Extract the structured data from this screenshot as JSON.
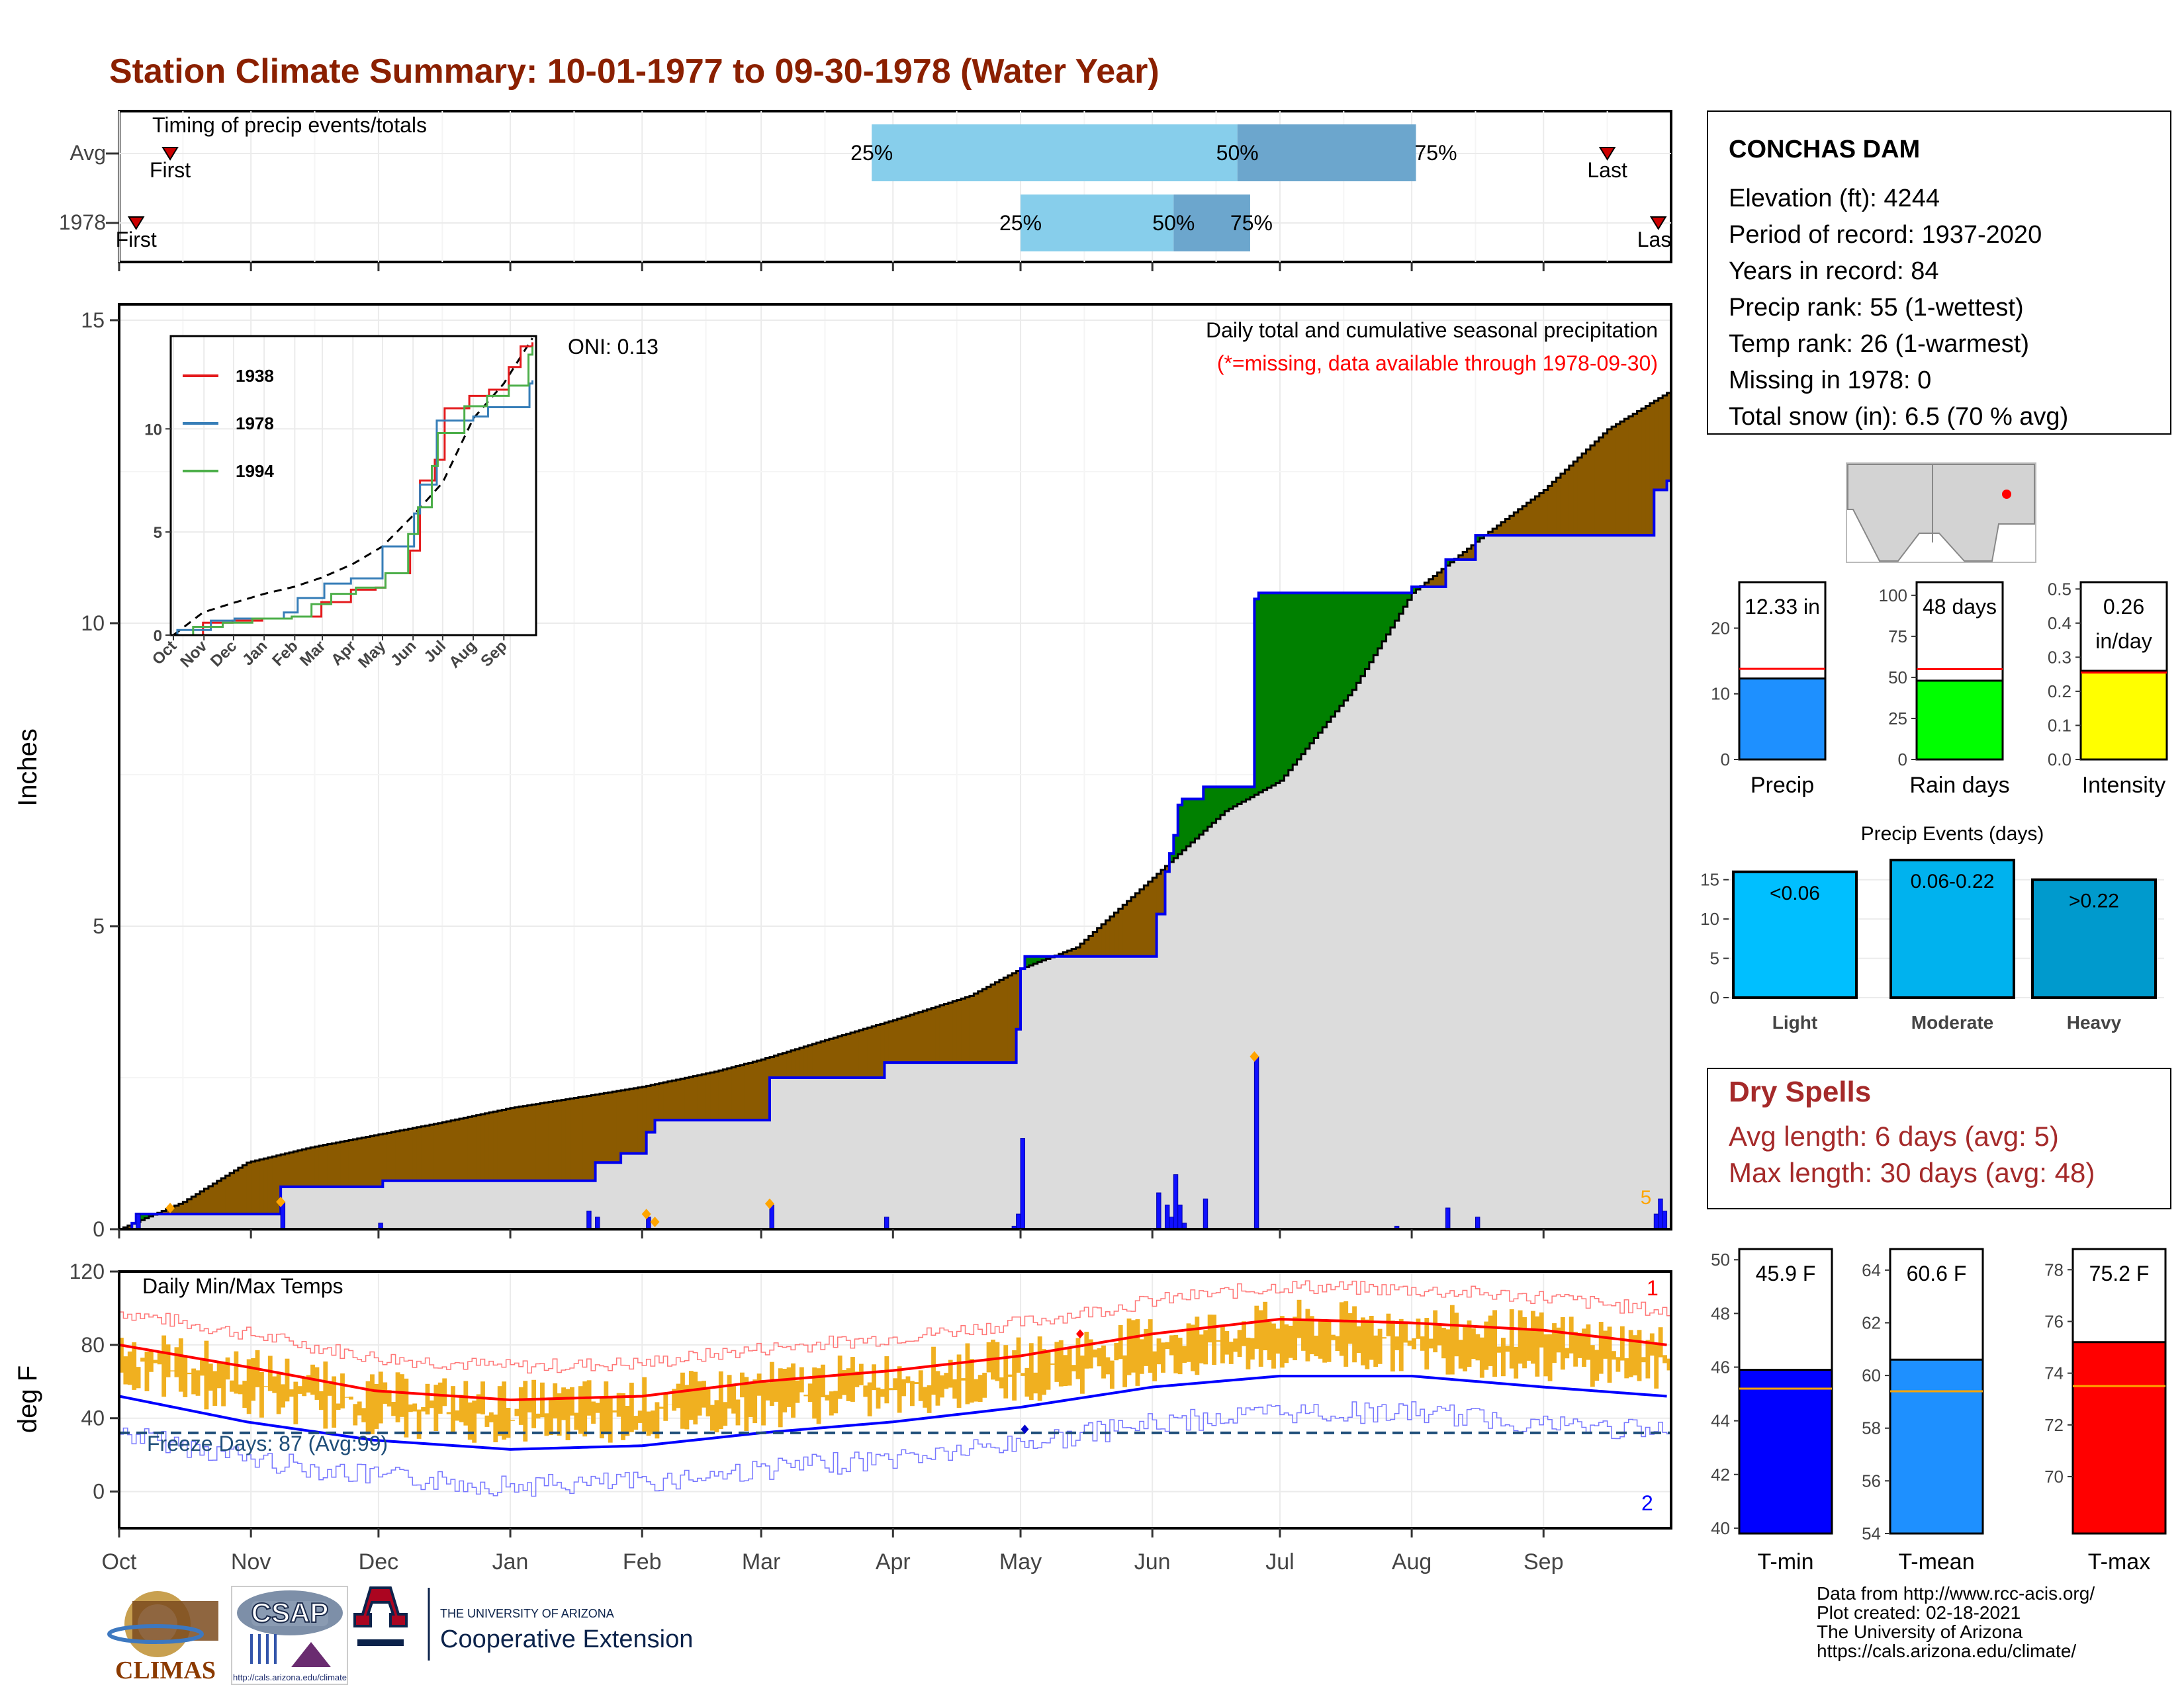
{
  "title": "Station Climate Summary: 10-01-1977 to 09-30-1978 (Water Year)",
  "colors": {
    "title": "#8B2000",
    "deficit": "#8B5A00",
    "surplus": "#008000",
    "avg_fill": "#DCDCDC",
    "obs_line": "#0000EE",
    "q1_bar": "#87CEEB",
    "q2_bar": "#6CA6CD",
    "temp_bar": "#F0B020",
    "precip_bar": "#1E90FF",
    "rain_bar": "#00FF00",
    "intensity_bar": "#FFFF00",
    "light_bar": "#00BFFF",
    "moderate_bar": "#00B2EE",
    "heavy_bar": "#009ACD",
    "tmin_bar": "#0000FF",
    "tmean_bar": "#1E90FF",
    "tmax_bar": "#FF0000",
    "dry_spell_text": "#A52A2A"
  },
  "months": [
    "Oct",
    "Nov",
    "Dec",
    "Jan",
    "Feb",
    "Mar",
    "Apr",
    "May",
    "Jun",
    "Jul",
    "Aug",
    "Sep"
  ],
  "month_start_days": [
    0,
    31,
    61,
    92,
    123,
    151,
    182,
    212,
    243,
    273,
    304,
    335
  ],
  "timing": {
    "title": "Timing of precip events/totals",
    "row_labels": [
      "Avg",
      "1978"
    ],
    "avg": {
      "first_day": 12,
      "q25_day": 177,
      "q50_day": 263,
      "q75_day": 305,
      "last_day": 350
    },
    "year": {
      "first_day": 4,
      "q25_day": 212,
      "q50_day": 248,
      "q75_day": 266,
      "last_day": 362
    },
    "labels": {
      "first": "First",
      "last": "Last",
      "last_cut": "Las",
      "q25": "25%",
      "q50": "50%",
      "q75": "75%"
    }
  },
  "precip": {
    "ylabel": "Inches",
    "yticks": [
      0,
      5,
      10,
      15
    ],
    "ylim": [
      0,
      15
    ],
    "subtitle1": "Daily total and cumulative seasonal precipitation",
    "subtitle2": "(*=missing, data available through 1978-09-30)",
    "oni": "ONI: 0.13",
    "count_label": "5"
  },
  "chart_data": {
    "type": "area",
    "title": "Daily total and cumulative seasonal precipitation",
    "ylabel": "Inches",
    "ylim": [
      0,
      15
    ],
    "avg_cumulative": {
      "x_day": [
        0,
        15,
        30,
        45,
        60,
        75,
        92,
        110,
        123,
        140,
        151,
        165,
        182,
        200,
        212,
        225,
        243,
        260,
        273,
        290,
        304,
        320,
        335,
        350,
        364
      ],
      "y": [
        0,
        0.45,
        1.1,
        1.35,
        1.55,
        1.75,
        2.0,
        2.2,
        2.35,
        2.6,
        2.8,
        3.1,
        3.45,
        3.85,
        4.3,
        4.65,
        5.8,
        6.9,
        7.4,
        8.9,
        10.5,
        11.4,
        12.2,
        13.2,
        13.8
      ]
    },
    "year_cumulative": {
      "x_day": [
        0,
        3,
        4,
        37,
        38,
        61,
        62,
        110,
        112,
        118,
        124,
        126,
        140,
        151,
        153,
        178,
        180,
        210,
        211,
        212,
        213,
        214,
        240,
        244,
        246,
        247,
        248,
        249,
        250,
        255,
        266,
        267,
        268,
        300,
        304,
        310,
        312,
        318,
        319,
        360,
        361,
        364
      ],
      "y": [
        0,
        0.1,
        0.25,
        0.25,
        0.7,
        0.7,
        0.8,
        0.8,
        1.1,
        1.25,
        1.6,
        1.8,
        1.8,
        1.8,
        2.5,
        2.5,
        2.75,
        2.75,
        3.3,
        4.3,
        4.5,
        4.5,
        4.5,
        5.2,
        5.9,
        6.2,
        6.5,
        7.0,
        7.1,
        7.3,
        7.3,
        10.4,
        10.5,
        10.5,
        10.6,
        10.6,
        11.05,
        11.05,
        11.45,
        11.45,
        12.2,
        12.35
      ]
    },
    "daily_precip": {
      "x_day": [
        4,
        38,
        61,
        110,
        112,
        124,
        153,
        180,
        210,
        211,
        212,
        244,
        246,
        247,
        248,
        249,
        250,
        255,
        267,
        300,
        312,
        319,
        361,
        362,
        363
      ],
      "y": [
        0.25,
        0.45,
        0.1,
        0.3,
        0.2,
        0.2,
        0.4,
        0.2,
        0.05,
        0.25,
        1.5,
        0.6,
        0.4,
        0.2,
        0.9,
        0.4,
        0.1,
        0.5,
        2.85,
        0.05,
        0.35,
        0.2,
        0.25,
        0.5,
        0.3
      ]
    }
  },
  "inset": {
    "series_names": [
      "1938",
      "1978",
      "1994"
    ],
    "series_colors": [
      "#E41A1C",
      "#377EB8",
      "#4DAF4A"
    ],
    "yticks": [
      0,
      5,
      10
    ],
    "ylim": [
      0,
      14.5
    ],
    "xticks": [
      "Oct",
      "Nov",
      "Dec",
      "Jan",
      "Feb",
      "Mar",
      "Apr",
      "May",
      "Jun",
      "Jul",
      "Aug",
      "Sep"
    ],
    "series": [
      {
        "name": "1938",
        "x_day": [
          0,
          30,
          60,
          90,
          120,
          150,
          180,
          205,
          215,
          240,
          250,
          265,
          275,
          300,
          320,
          340,
          352,
          364
        ],
        "y": [
          0,
          0.6,
          0.7,
          0.8,
          0.9,
          1.6,
          2.2,
          2.3,
          3.0,
          4.1,
          7.5,
          8.5,
          11.0,
          11.6,
          11.9,
          13.0,
          14.0,
          14.2
        ]
      },
      {
        "name": "1978",
        "x_day": [
          0,
          4,
          38,
          62,
          112,
          126,
          153,
          180,
          212,
          244,
          250,
          267,
          304,
          319,
          361,
          364
        ],
        "y": [
          0,
          0.25,
          0.7,
          0.8,
          1.1,
          1.8,
          2.5,
          2.75,
          4.3,
          5.9,
          7.3,
          10.4,
          10.6,
          11.05,
          12.2,
          12.35
        ]
      },
      {
        "name": "1994",
        "x_day": [
          0,
          20,
          50,
          80,
          120,
          140,
          160,
          185,
          215,
          238,
          248,
          262,
          268,
          295,
          318,
          340,
          360,
          364
        ],
        "y": [
          0,
          0.4,
          0.6,
          0.8,
          0.9,
          1.5,
          2.0,
          2.3,
          3.0,
          4.9,
          6.2,
          8.2,
          9.8,
          11.1,
          11.6,
          12.1,
          13.6,
          14.0
        ]
      }
    ],
    "avg_line": {
      "x_day": [
        0,
        30,
        60,
        92,
        123,
        151,
        182,
        212,
        243,
        273,
        304,
        335,
        364
      ],
      "y": [
        0,
        1.1,
        1.55,
        2.0,
        2.35,
        2.8,
        3.45,
        4.3,
        5.8,
        7.4,
        10.5,
        12.2,
        14.4
      ]
    }
  },
  "temps": {
    "title": "Daily Min/Max Temps",
    "ylabel": "deg F",
    "yticks": [
      0,
      40,
      80,
      120
    ],
    "ylim": [
      -20,
      120
    ],
    "freeze_line": 32,
    "freeze_label": "Freeze Days: 87 (Avg:99)",
    "corner_top": "1",
    "corner_bottom": "2",
    "normal_max": {
      "x_day": [
        0,
        30,
        60,
        92,
        123,
        151,
        182,
        212,
        243,
        273,
        304,
        335,
        364
      ],
      "y": [
        80,
        68,
        55,
        50,
        52,
        60,
        66,
        74,
        86,
        94,
        92,
        88,
        80
      ]
    },
    "normal_min": {
      "x_day": [
        0,
        30,
        60,
        92,
        123,
        151,
        182,
        212,
        243,
        273,
        304,
        335,
        364
      ],
      "y": [
        52,
        38,
        28,
        23,
        25,
        32,
        38,
        46,
        57,
        63,
        63,
        57,
        52
      ]
    }
  },
  "station": {
    "name": "CONCHAS DAM",
    "lines": [
      "Elevation (ft): 4244",
      "Period of record: 1937-2020",
      "Years in record: 84",
      "Precip rank: 55 (1-wettest)",
      "Temp rank: 26 (1-warmest)",
      "Missing in 1978: 0",
      "Total snow (in): 6.5 (70 % avg)"
    ]
  },
  "mini_bars": [
    {
      "label": "Precip",
      "value_text": "12.33 in",
      "value": 12.33,
      "avg": 13.8,
      "ymax": 27,
      "yticks": [
        0,
        10,
        20
      ]
    },
    {
      "label": "Rain days",
      "value_text": "48 days",
      "value": 48,
      "avg": 55,
      "ymax": 108,
      "yticks": [
        0,
        25,
        50,
        75,
        100
      ]
    },
    {
      "label": "Intensity",
      "value_text": "0.26",
      "value_text2": "in/day",
      "value": 0.26,
      "avg": 0.255,
      "ymax": 0.52,
      "yticks": [
        "0.0",
        "0.1",
        "0.2",
        "0.3",
        "0.4",
        "0.5"
      ]
    }
  ],
  "events": {
    "title": "Precip Events (days)",
    "categories": [
      "Light",
      "Moderate",
      "Heavy"
    ],
    "bar_labels": [
      "<0.06",
      "0.06-0.22",
      ">0.22"
    ],
    "values": [
      16,
      17.5,
      15
    ],
    "ymax": 17.5,
    "yticks": [
      0,
      5,
      10,
      15
    ]
  },
  "dry_spells": {
    "title": "Dry Spells",
    "avg_length": "Avg length: 6 days (avg: 5)",
    "max_length": "Max length: 30 days (avg: 48)"
  },
  "temp_bars": [
    {
      "label": "T-min",
      "value_text": "45.9 F",
      "value": 45.9,
      "avg": 45.2,
      "ymin": 39.8,
      "ymax": 50.4,
      "yticks": [
        40,
        42,
        44,
        46,
        48,
        50
      ]
    },
    {
      "label": "T-mean",
      "value_text": "60.6 F",
      "value": 60.6,
      "avg": 59.4,
      "ymin": 54,
      "ymax": 64.8,
      "yticks": [
        54,
        56,
        58,
        60,
        62,
        64
      ]
    },
    {
      "label": "T-max",
      "value_text": "75.2 F",
      "value": 75.2,
      "avg": 73.5,
      "ymin": 67.8,
      "ymax": 78.8,
      "yticks": [
        70,
        72,
        74,
        76,
        78
      ]
    }
  ],
  "footer": {
    "lines": [
      "Data from http://www.rcc-acis.org/",
      "Plot created: 02-18-2021",
      "The University of Arizona",
      "https://cals.arizona.edu/climate/"
    ]
  },
  "logos": {
    "climas": "CLIMAS",
    "csap": "CSAP",
    "csap_url": "http://cals.arizona.edu/climate",
    "ua_small": "THE UNIVERSITY OF ARIZONA",
    "ua_big": "Cooperative Extension"
  }
}
